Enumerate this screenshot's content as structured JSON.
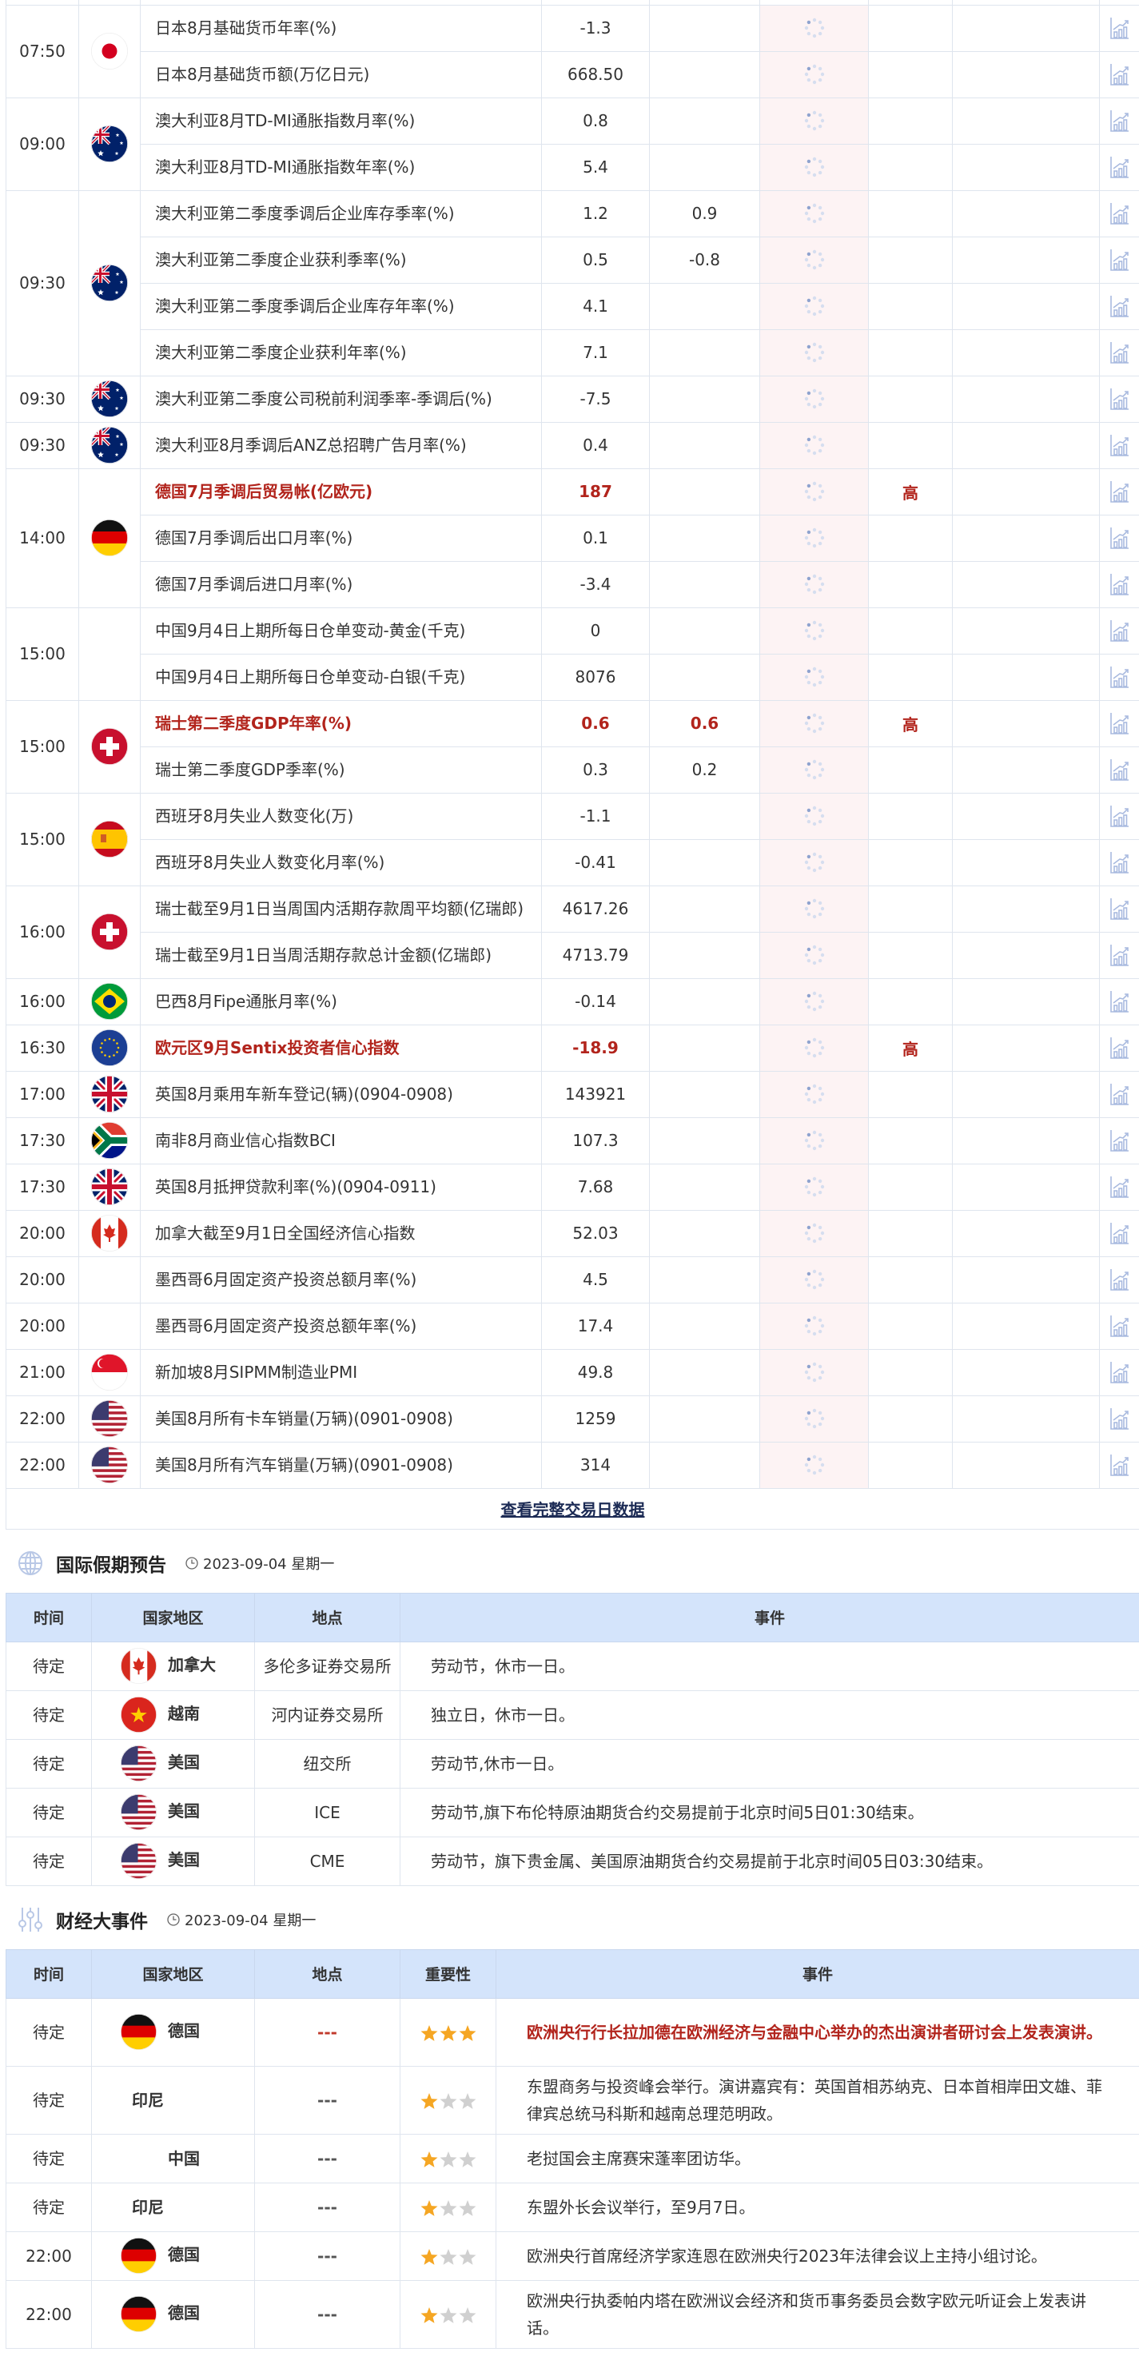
{
  "colors": {
    "highlight": "#b2241c",
    "header_bg": "#d4e4fb",
    "prior_bg": "#fdf3f4",
    "star_on": "#f5a623",
    "star_off": "#d0d0d0",
    "icon": "#a9badf"
  },
  "calendar": {
    "chart_icon": "bar-chart-trend-icon",
    "loading_icon": "spinner-icon",
    "groups": [
      {
        "time": "07:50",
        "flag": "jp",
        "rows": [
          {
            "name": "日本8月基础货币年率(%)",
            "actual": "-1.3"
          },
          {
            "name": "日本8月基础货币额(万亿日元)",
            "actual": "668.50"
          }
        ]
      },
      {
        "time": "09:00",
        "flag": "au",
        "rows": [
          {
            "name": "澳大利亚8月TD-MI通胀指数月率(%)",
            "actual": "0.8"
          },
          {
            "name": "澳大利亚8月TD-MI通胀指数年率(%)",
            "actual": "5.4"
          }
        ]
      },
      {
        "time": "09:30",
        "flag": "au",
        "rows": [
          {
            "name": "澳大利亚第二季度季调后企业库存季率(%)",
            "actual": "1.2",
            "forecast": "0.9"
          },
          {
            "name": "澳大利亚第二季度企业获利季率(%)",
            "actual": "0.5",
            "forecast": "-0.8"
          },
          {
            "name": "澳大利亚第二季度季调后企业库存年率(%)",
            "actual": "4.1"
          },
          {
            "name": "澳大利亚第二季度企业获利年率(%)",
            "actual": "7.1"
          }
        ]
      },
      {
        "time": "09:30",
        "flag": "au",
        "rows": [
          {
            "name": "澳大利亚第二季度公司税前利润季率-季调后(%)",
            "actual": "-7.5"
          }
        ]
      },
      {
        "time": "09:30",
        "flag": "au",
        "rows": [
          {
            "name": "澳大利亚8月季调后ANZ总招聘广告月率(%)",
            "actual": "0.4"
          }
        ]
      },
      {
        "time": "14:00",
        "flag": "de",
        "rows": [
          {
            "name": "德国7月季调后贸易帐(亿欧元)",
            "actual": "187",
            "importance": "高",
            "highlight": true
          },
          {
            "name": "德国7月季调后出口月率(%)",
            "actual": "0.1"
          },
          {
            "name": "德国7月季调后进口月率(%)",
            "actual": "-3.4"
          }
        ]
      },
      {
        "time": "15:00",
        "flag": null,
        "rows": [
          {
            "name": "中国9月4日上期所每日仓单变动-黄金(千克)",
            "actual": "0"
          },
          {
            "name": "中国9月4日上期所每日仓单变动-白银(千克)",
            "actual": "8076"
          }
        ]
      },
      {
        "time": "15:00",
        "flag": "ch",
        "rows": [
          {
            "name": "瑞士第二季度GDP年率(%)",
            "actual": "0.6",
            "forecast": "0.6",
            "importance": "高",
            "highlight": true
          },
          {
            "name": "瑞士第二季度GDP季率(%)",
            "actual": "0.3",
            "forecast": "0.2"
          }
        ]
      },
      {
        "time": "15:00",
        "flag": "es",
        "rows": [
          {
            "name": "西班牙8月失业人数变化(万)",
            "actual": "-1.1"
          },
          {
            "name": "西班牙8月失业人数变化月率(%)",
            "actual": "-0.41"
          }
        ]
      },
      {
        "time": "16:00",
        "flag": "ch",
        "rows": [
          {
            "name": "瑞士截至9月1日当周国内活期存款周平均额(亿瑞郎)",
            "actual": "4617.26"
          },
          {
            "name": "瑞士截至9月1日当周活期存款总计金额(亿瑞郎)",
            "actual": "4713.79"
          }
        ]
      },
      {
        "time": "16:00",
        "flag": "br",
        "rows": [
          {
            "name": "巴西8月Fipe通胀月率(%)",
            "actual": "-0.14"
          }
        ]
      },
      {
        "time": "16:30",
        "flag": "eu",
        "rows": [
          {
            "name": "欧元区9月Sentix投资者信心指数",
            "actual": "-18.9",
            "importance": "高",
            "highlight": true
          }
        ]
      },
      {
        "time": "17:00",
        "flag": "gb",
        "rows": [
          {
            "name": "英国8月乘用车新车登记(辆)(0904-0908)",
            "actual": "143921"
          }
        ]
      },
      {
        "time": "17:30",
        "flag": "za",
        "rows": [
          {
            "name": "南非8月商业信心指数BCI",
            "actual": "107.3"
          }
        ]
      },
      {
        "time": "17:30",
        "flag": "gb",
        "rows": [
          {
            "name": "英国8月抵押贷款利率(%)(0904-0911)",
            "actual": "7.68"
          }
        ]
      },
      {
        "time": "20:00",
        "flag": "ca",
        "rows": [
          {
            "name": "加拿大截至9月1日全国经济信心指数",
            "actual": "52.03"
          }
        ]
      },
      {
        "time": "20:00",
        "flag": null,
        "rows": [
          {
            "name": "墨西哥6月固定资产投资总额月率(%)",
            "actual": "4.5"
          }
        ]
      },
      {
        "time": "20:00",
        "flag": null,
        "rows": [
          {
            "name": "墨西哥6月固定资产投资总额年率(%)",
            "actual": "17.4"
          }
        ]
      },
      {
        "time": "21:00",
        "flag": "sg",
        "rows": [
          {
            "name": "新加坡8月SIPMM制造业PMI",
            "actual": "49.8"
          }
        ]
      },
      {
        "time": "22:00",
        "flag": "us",
        "rows": [
          {
            "name": "美国8月所有卡车销量(万辆)(0901-0908)",
            "actual": "1259"
          }
        ]
      },
      {
        "time": "22:00",
        "flag": "us",
        "rows": [
          {
            "name": "美国8月所有汽车销量(万辆)(0901-0908)",
            "actual": "314"
          }
        ]
      }
    ],
    "view_all_label": "查看完整交易日数据"
  },
  "holidays": {
    "title": "国际假期预告",
    "icon": "globe-icon",
    "date": "2023-09-04 星期一",
    "columns": [
      "时间",
      "国家地区",
      "地点",
      "事件"
    ],
    "rows": [
      {
        "time": "待定",
        "flag": "ca",
        "country": "加拿大",
        "place": "多伦多证券交易所",
        "event": "劳动节，休市一日。"
      },
      {
        "time": "待定",
        "flag": "vn",
        "country": "越南",
        "place": "河内证券交易所",
        "event": "独立日，休市一日。"
      },
      {
        "time": "待定",
        "flag": "us",
        "country": "美国",
        "place": "纽交所",
        "event": "劳动节,休市一日。"
      },
      {
        "time": "待定",
        "flag": "us",
        "country": "美国",
        "place": "ICE",
        "event": "劳动节,旗下布伦特原油期货合约交易提前于北京时间5日01:30结束。"
      },
      {
        "time": "待定",
        "flag": "us",
        "country": "美国",
        "place": "CME",
        "event": "劳动节，旗下贵金属、美国原油期货合约交易提前于北京时间05日03:30结束。"
      }
    ]
  },
  "events": {
    "title": "财经大事件",
    "icon": "sliders-icon",
    "date": "2023-09-04 星期一",
    "columns": [
      "时间",
      "国家地区",
      "地点",
      "重要性",
      "事件"
    ],
    "rows": [
      {
        "time": "待定",
        "flag": "de",
        "country": "德国",
        "place": "---",
        "stars": 3,
        "highlight": true,
        "event": "欧洲央行行长拉加德在欧洲经济与金融中心举办的杰出演讲者研讨会上发表演讲。"
      },
      {
        "time": "待定",
        "flag": null,
        "country": "印尼",
        "place": "---",
        "stars": 1,
        "event": "东盟商务与投资峰会举行。演讲嘉宾有：英国首相苏纳克、日本首相岸田文雄、菲律宾总统马科斯和越南总理范明政。"
      },
      {
        "time": "待定",
        "flag": null,
        "country": "中国",
        "place": "---",
        "stars": 1,
        "event": "老挝国会主席赛宋蓬率团访华。"
      },
      {
        "time": "待定",
        "flag": null,
        "country": "印尼",
        "place": "---",
        "stars": 1,
        "event": "东盟外长会议举行，至9月7日。"
      },
      {
        "time": "22:00",
        "flag": "de",
        "country": "德国",
        "place": "---",
        "stars": 1,
        "event": "欧洲央行首席经济学家连恩在欧洲央行2023年法律会议上主持小组讨论。"
      },
      {
        "time": "22:00",
        "flag": "de",
        "country": "德国",
        "place": "---",
        "stars": 1,
        "event": "欧洲央行执委帕内塔在欧洲议会经济和货币事务委员会数字欧元听证会上发表讲话。"
      }
    ]
  }
}
